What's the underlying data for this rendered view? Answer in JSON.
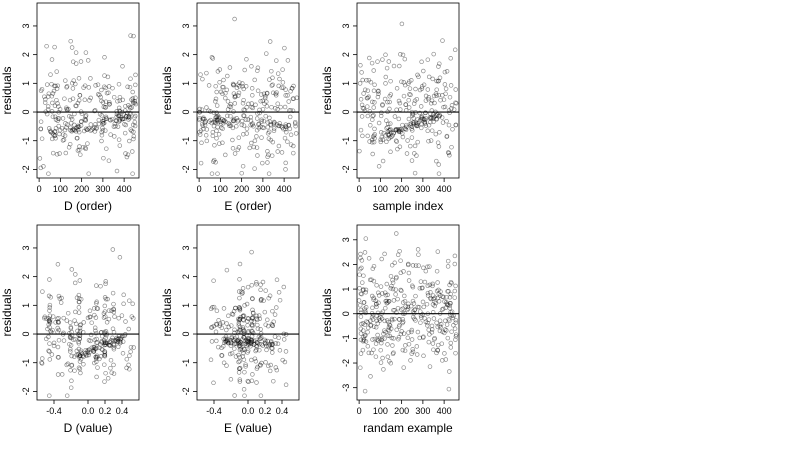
{
  "figure": {
    "panel_count": 6,
    "point_color": "#000000",
    "point_style": "open-circle",
    "reference_line": 0
  },
  "chart_data": [
    {
      "type": "scatter",
      "xlabel": "D (order)",
      "ylabel": "residuals",
      "xlim": [
        -10,
        470
      ],
      "ylim": [
        -2.3,
        3.8
      ],
      "xticks": [
        0,
        100,
        200,
        300,
        400
      ],
      "yticks": [
        -2,
        -1,
        0,
        1,
        2,
        3
      ],
      "hline": 0,
      "pattern": "band",
      "n_points": 240,
      "x_range": [
        0,
        460
      ],
      "band": {
        "x": [
          50,
          440
        ],
        "y": [
          -0.8,
          -0.1
        ]
      }
    },
    {
      "type": "scatter",
      "xlabel": "E (order)",
      "ylabel": "residuals",
      "xlim": [
        -10,
        470
      ],
      "ylim": [
        -2.3,
        3.8
      ],
      "xticks": [
        0,
        100,
        200,
        300,
        400
      ],
      "yticks": [
        -2,
        -1,
        0,
        1,
        2,
        3
      ],
      "hline": 0,
      "pattern": "band",
      "n_points": 240,
      "x_range": [
        0,
        460
      ],
      "band": {
        "x": [
          0,
          460
        ],
        "y": [
          -0.3,
          -0.5
        ]
      }
    },
    {
      "type": "scatter",
      "xlabel": "sample index",
      "ylabel": "residuals",
      "xlim": [
        -10,
        470
      ],
      "ylim": [
        -2.3,
        3.8
      ],
      "xticks": [
        0,
        100,
        200,
        300,
        400
      ],
      "yticks": [
        -2,
        -1,
        0,
        1,
        2,
        3
      ],
      "hline": 0,
      "pattern": "band",
      "n_points": 240,
      "x_range": [
        0,
        460
      ],
      "band": {
        "x": [
          100,
          380
        ],
        "y": [
          -0.9,
          -0.1
        ]
      }
    },
    {
      "type": "scatter",
      "xlabel": "D (value)",
      "ylabel": "residuals",
      "xlim": [
        -0.6,
        0.6
      ],
      "ylim": [
        -2.3,
        3.8
      ],
      "xticks": [
        -0.4,
        0.0,
        0.2,
        0.4
      ],
      "xtick_labels": [
        "-0.4",
        "0.0",
        "0.2",
        "0.4"
      ],
      "yticks": [
        -2,
        -1,
        0,
        1,
        2,
        3
      ],
      "hline": 0,
      "pattern": "stripes",
      "n_points": 240,
      "x_range": [
        -0.55,
        0.55
      ],
      "stripes": [
        -0.45,
        -0.35,
        -0.2,
        -0.1,
        0.1,
        0.2,
        0.3
      ],
      "band": {
        "x": [
          -0.15,
          0.45
        ],
        "y": [
          -0.8,
          -0.1
        ]
      }
    },
    {
      "type": "scatter",
      "xlabel": "E (value)",
      "ylabel": "residuals",
      "xlim": [
        -0.6,
        0.6
      ],
      "ylim": [
        -2.3,
        3.8
      ],
      "xticks": [
        -0.4,
        0.0,
        0.2,
        0.4
      ],
      "xtick_labels": [
        "-0.4",
        "0.0",
        "0.2",
        "0.4"
      ],
      "yticks": [
        -2,
        -1,
        0,
        1,
        2,
        3
      ],
      "hline": 0,
      "pattern": "stripes",
      "n_points": 240,
      "x_range": [
        -0.45,
        0.45
      ],
      "stripes": [
        -0.1,
        -0.05,
        0.0,
        0.05,
        0.1,
        0.15
      ],
      "band": {
        "x": [
          -0.3,
          0.3
        ],
        "y": [
          -0.2,
          -0.4
        ]
      }
    },
    {
      "type": "scatter",
      "xlabel": "randam example",
      "ylabel": "residuals",
      "xlim": [
        -10,
        470
      ],
      "ylim": [
        -3.5,
        3.6
      ],
      "xticks": [
        0,
        100,
        200,
        300,
        400
      ],
      "yticks": [
        -3,
        -2,
        -1,
        0,
        1,
        2,
        3
      ],
      "hline": 0,
      "pattern": "random",
      "n_points": 380,
      "x_range": [
        0,
        460
      ],
      "band": null
    }
  ]
}
